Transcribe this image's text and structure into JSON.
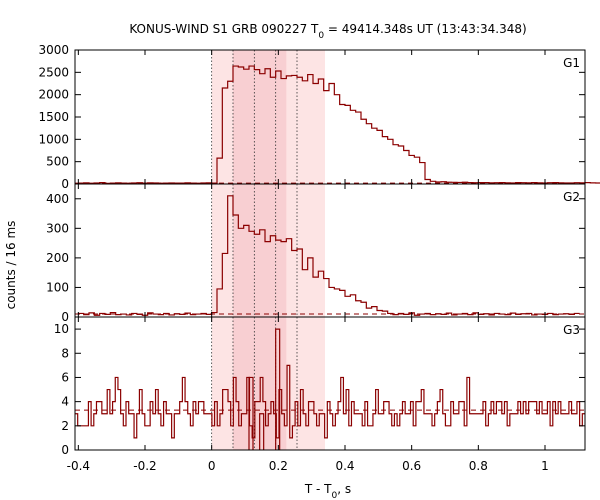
{
  "chart_data": {
    "type": "line",
    "title_prefix": "KONUS-WIND S1 GRB 090227 T",
    "title_sub": "0",
    "title_suffix": " = 49414.348s UT (13:43:34.348)",
    "xlabel_prefix": "T - T",
    "xlabel_sub": "0",
    "xlabel_suffix": ", s",
    "ylabel": "counts / 16 ms",
    "xlim": [
      -0.41,
      1.12
    ],
    "xticks": [
      -0.4,
      -0.2,
      0,
      0.2,
      0.4,
      0.6,
      0.8,
      1
    ],
    "xtick_labels": [
      "-0.4",
      "-0.2",
      "0",
      "0.2",
      "0.4",
      "0.6",
      "0.8",
      "1"
    ],
    "bin_width": 0.016,
    "colors": {
      "histogram": "#8b0000",
      "band_light": "#fde4e4",
      "band_dark": "#f8cfd2",
      "background_line": "#8b0000",
      "marker_line": "#333333"
    },
    "shaded_intervals": {
      "light": [
        0.0,
        0.34
      ],
      "dark": [
        0.064,
        0.224
      ]
    },
    "marker_lines": [
      0,
      0.064,
      0.128,
      0.192,
      0.256
    ],
    "panels": [
      {
        "label": "G1",
        "ylim": [
          0,
          3000
        ],
        "yticks": [
          0,
          500,
          1000,
          1500,
          2000,
          2500,
          3000
        ],
        "ytick_labels": [
          "0",
          "500",
          "1000",
          "1500",
          "2000",
          "2500",
          "3000"
        ],
        "background": 20,
        "bins_start": -0.4,
        "values": [
          20,
          25,
          18,
          22,
          30,
          15,
          20,
          25,
          20,
          18,
          22,
          28,
          20,
          25,
          22,
          18,
          20,
          24,
          19,
          21,
          26,
          20,
          18,
          22,
          25,
          20,
          580,
          2150,
          2300,
          2640,
          2620,
          2570,
          2640,
          2560,
          2470,
          2580,
          2390,
          2530,
          2360,
          2420,
          2430,
          2390,
          2310,
          2450,
          2250,
          2350,
          2090,
          2250,
          2000,
          1780,
          1760,
          1650,
          1610,
          1450,
          1350,
          1250,
          1200,
          1060,
          1000,
          880,
          850,
          750,
          640,
          600,
          480,
          100,
          60,
          45,
          50,
          40,
          38,
          35,
          40,
          30,
          28,
          32,
          30,
          25,
          28,
          30,
          25,
          22,
          30,
          28,
          25,
          30,
          26,
          22,
          28,
          30,
          25,
          24,
          22,
          28,
          26,
          30,
          25,
          22,
          20
        ]
      },
      {
        "label": "G2",
        "ylim": [
          0,
          450
        ],
        "yticks": [
          0,
          100,
          200,
          300,
          400
        ],
        "ytick_labels": [
          "0",
          "100",
          "200",
          "300",
          "400"
        ],
        "background": 10,
        "bins_start": -0.4,
        "values": [
          12,
          8,
          14,
          6,
          12,
          9,
          15,
          8,
          10,
          7,
          12,
          9,
          6,
          14,
          10,
          8,
          12,
          7,
          11,
          9,
          13,
          8,
          10,
          12,
          9,
          15,
          95,
          215,
          410,
          345,
          300,
          310,
          290,
          280,
          295,
          255,
          275,
          260,
          255,
          265,
          225,
          230,
          160,
          200,
          135,
          155,
          130,
          100,
          95,
          90,
          70,
          75,
          55,
          50,
          30,
          35,
          22,
          20,
          12,
          8,
          12,
          9,
          14,
          6,
          10,
          12,
          8,
          11,
          9,
          13,
          7,
          10,
          12,
          8,
          14,
          9,
          11,
          7,
          12,
          10,
          8,
          13,
          9,
          11,
          12,
          7,
          10,
          9,
          12,
          8,
          10,
          11,
          9,
          12
        ]
      },
      {
        "label": "G3",
        "ylim": [
          0,
          11
        ],
        "yticks": [
          0,
          2,
          4,
          6,
          8,
          10
        ],
        "ytick_labels": [
          "0",
          "2",
          "4",
          "6",
          "8",
          "10"
        ],
        "background": 3.3,
        "bins_start": -0.4,
        "values": [
          3,
          2,
          2,
          2,
          2,
          4,
          2,
          3,
          4,
          4,
          3,
          3,
          5,
          3,
          4,
          6,
          5,
          3,
          2,
          4,
          3,
          3,
          1,
          3,
          5,
          3,
          2,
          2,
          4,
          3,
          5,
          3,
          2,
          4,
          3,
          3,
          1,
          3,
          3,
          4,
          6,
          4,
          3,
          2,
          4,
          3,
          4,
          4,
          3,
          3,
          3,
          2,
          4,
          2,
          3,
          5,
          5,
          4,
          2,
          6,
          4,
          2,
          3,
          3,
          6,
          2,
          1,
          4,
          4,
          6,
          4,
          2,
          3,
          4,
          3,
          1,
          5,
          3,
          2,
          7,
          1,
          2,
          4,
          2,
          5,
          3,
          2,
          4,
          4,
          3,
          2,
          3,
          3,
          1,
          4,
          3,
          2,
          3,
          4,
          6,
          3,
          5,
          2,
          4,
          3,
          3,
          3,
          2,
          4,
          2,
          2,
          3,
          5,
          3,
          3,
          4,
          4,
          3,
          2,
          3,
          2,
          3,
          4,
          3,
          3,
          4,
          2,
          4,
          4,
          5,
          3,
          3,
          3,
          2,
          3,
          4,
          5,
          3,
          2,
          2,
          4,
          3,
          3,
          4,
          4,
          2,
          6,
          3,
          3,
          3,
          3,
          3,
          4,
          2,
          3,
          4,
          3,
          4,
          4,
          3,
          4,
          2,
          3,
          3,
          3,
          4,
          3,
          4,
          3,
          4,
          4,
          4,
          3,
          4,
          3,
          3,
          4,
          2,
          4,
          3,
          4,
          3,
          3,
          3,
          4,
          3,
          3,
          4,
          2,
          3
        ],
        "spikes": [
          {
            "x": 0.192,
            "value": 10
          },
          {
            "x": 0.144,
            "value": 3
          },
          {
            "x": 0.112,
            "value": 6
          }
        ]
      }
    ]
  }
}
